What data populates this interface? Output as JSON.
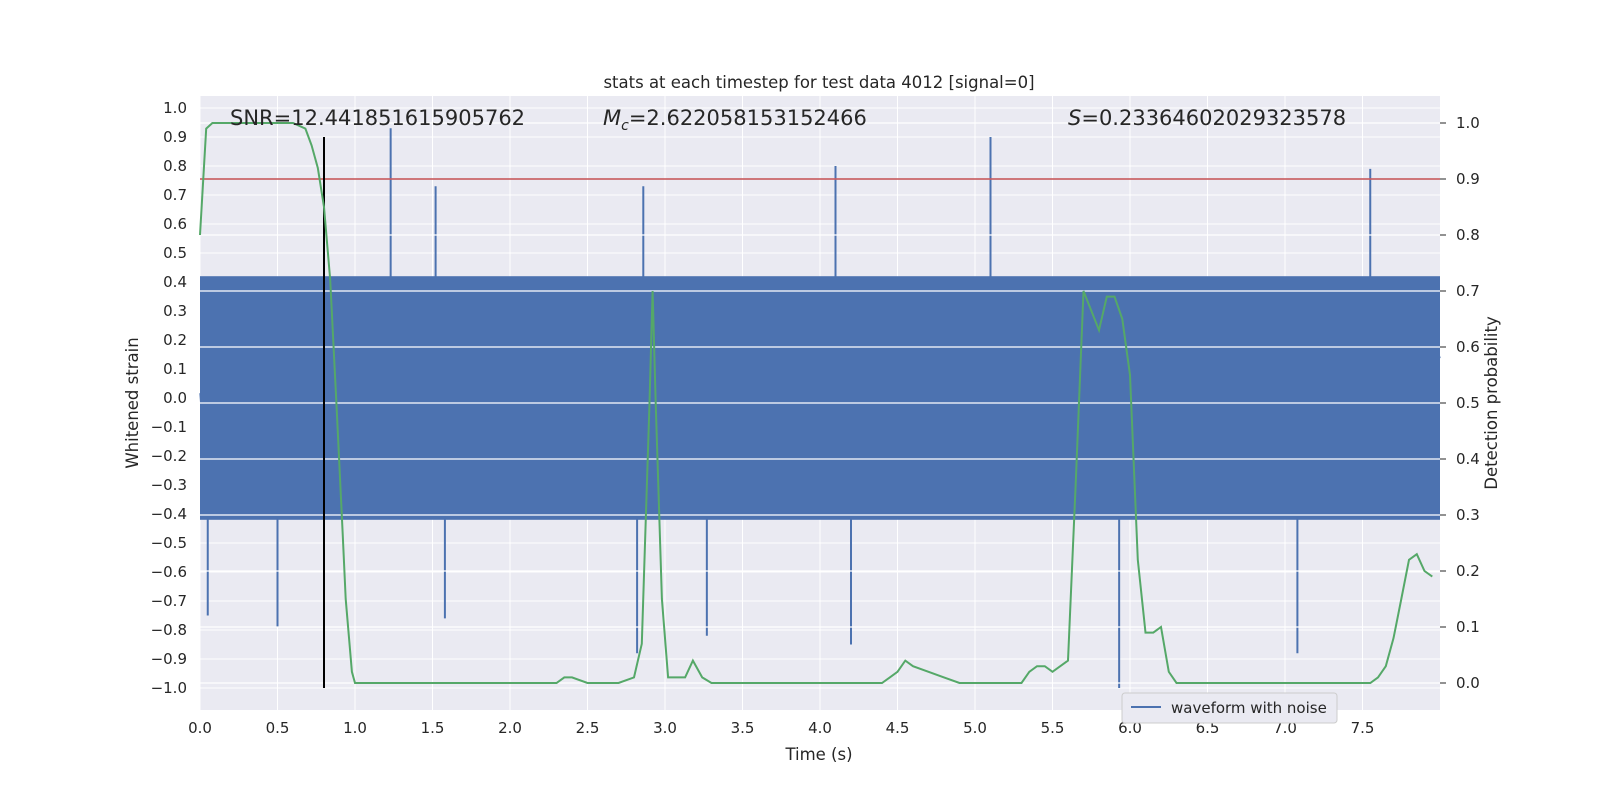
{
  "chart_data": {
    "type": "line",
    "title": "stats at each timestep for test data 4012 [signal=0]",
    "xlabel": "Time (s)",
    "ylabel_left": "Whitened strain",
    "ylabel_right": "Detection probability",
    "xlim": [
      0,
      8
    ],
    "ylim_left": [
      -1.0,
      1.0
    ],
    "ylim_right": [
      0.0,
      1.0
    ],
    "x_ticks": [
      "0.0",
      "0.5",
      "1.0",
      "1.5",
      "2.0",
      "2.5",
      "3.0",
      "3.5",
      "4.0",
      "4.5",
      "5.0",
      "5.5",
      "6.0",
      "6.5",
      "7.0",
      "7.5"
    ],
    "y_ticks_left": [
      "1.0",
      "0.9",
      "0.8",
      "0.7",
      "0.6",
      "0.5",
      "0.4",
      "0.3",
      "0.2",
      "0.1",
      "0.0",
      "−0.1",
      "−0.2",
      "−0.3",
      "−0.4",
      "−0.5",
      "−0.6",
      "−0.7",
      "−0.8",
      "−0.9",
      "−1.0"
    ],
    "y_ticks_right": [
      "1.0",
      "0.9",
      "0.8",
      "0.7",
      "0.6",
      "0.5",
      "0.4",
      "0.3",
      "0.2",
      "0.1",
      "0.0"
    ],
    "annotations": {
      "snr": "SNR=12.441851615905762",
      "mc_symbol": "M",
      "mc_subscript": "c",
      "mc_value": "=2.622058153152466",
      "s_symbol": "S",
      "s_value": "=0.23364602029323578"
    },
    "threshold": 0.9,
    "marker_time": 0.8,
    "grid": true,
    "legend": {
      "placement": "lower-right",
      "entries": [
        "waveform with noise"
      ]
    },
    "waveform": {
      "name": "waveform with noise",
      "description_envelope_max": [
        0.5,
        0.6,
        0.55,
        0.9,
        0.6,
        0.6,
        0.55,
        0.6
      ],
      "typical_band": [
        -0.42,
        0.42
      ],
      "spikes": [
        {
          "x": 0.85,
          "y": 0.37
        },
        {
          "x": 1.23,
          "y": 0.93
        },
        {
          "x": 1.52,
          "y": 0.73
        },
        {
          "x": 2.86,
          "y": 0.73
        },
        {
          "x": 4.1,
          "y": 0.8
        },
        {
          "x": 5.1,
          "y": 0.9
        },
        {
          "x": 7.55,
          "y": 0.79
        },
        {
          "x": 0.5,
          "y": -0.79
        },
        {
          "x": 2.82,
          "y": -0.88
        },
        {
          "x": 4.2,
          "y": -0.85
        },
        {
          "x": 5.93,
          "y": -1.0
        },
        {
          "x": 7.08,
          "y": -0.88
        },
        {
          "x": 0.05,
          "y": -0.75
        },
        {
          "x": 1.58,
          "y": -0.76
        },
        {
          "x": 3.27,
          "y": -0.82
        }
      ]
    },
    "detection_probability": {
      "x": [
        0.0,
        0.04,
        0.08,
        0.12,
        0.2,
        0.3,
        0.4,
        0.5,
        0.6,
        0.68,
        0.72,
        0.76,
        0.8,
        0.84,
        0.88,
        0.92,
        0.94,
        0.98,
        1.0,
        1.05,
        1.1,
        1.2,
        1.3,
        1.4,
        1.5,
        1.6,
        1.7,
        1.8,
        1.9,
        2.0,
        2.1,
        2.2,
        2.3,
        2.35,
        2.4,
        2.5,
        2.6,
        2.7,
        2.8,
        2.85,
        2.9,
        2.92,
        2.94,
        2.98,
        3.02,
        3.08,
        3.13,
        3.18,
        3.24,
        3.3,
        3.4,
        3.5,
        3.6,
        3.7,
        3.8,
        3.9,
        4.0,
        4.1,
        4.2,
        4.3,
        4.4,
        4.45,
        4.5,
        4.55,
        4.6,
        4.7,
        4.8,
        4.9,
        5.0,
        5.1,
        5.2,
        5.25,
        5.3,
        5.35,
        5.4,
        5.45,
        5.5,
        5.6,
        5.65,
        5.7,
        5.8,
        5.85,
        5.9,
        5.95,
        6.0,
        6.05,
        6.1,
        6.15,
        6.2,
        6.25,
        6.3,
        6.4,
        6.5,
        6.6,
        6.7,
        6.8,
        6.9,
        7.0,
        7.1,
        7.2,
        7.3,
        7.4,
        7.5,
        7.55,
        7.6,
        7.65,
        7.7,
        7.75,
        7.8,
        7.85,
        7.9,
        7.95
      ],
      "y": [
        0.8,
        0.99,
        1.0,
        1.0,
        1.0,
        1.0,
        1.0,
        1.0,
        1.0,
        0.99,
        0.96,
        0.92,
        0.85,
        0.72,
        0.5,
        0.27,
        0.15,
        0.02,
        0.0,
        0.0,
        0.0,
        0.0,
        0.0,
        0.0,
        0.0,
        0.0,
        0.0,
        0.0,
        0.0,
        0.0,
        0.0,
        0.0,
        0.0,
        0.01,
        0.01,
        0.0,
        0.0,
        0.0,
        0.01,
        0.07,
        0.5,
        0.7,
        0.5,
        0.15,
        0.01,
        0.01,
        0.01,
        0.04,
        0.01,
        0.0,
        0.0,
        0.0,
        0.0,
        0.0,
        0.0,
        0.0,
        0.0,
        0.0,
        0.0,
        0.0,
        0.0,
        0.01,
        0.02,
        0.04,
        0.03,
        0.02,
        0.01,
        0.0,
        0.0,
        0.0,
        0.0,
        0.0,
        0.0,
        0.02,
        0.03,
        0.03,
        0.02,
        0.04,
        0.36,
        0.7,
        0.63,
        0.69,
        0.69,
        0.65,
        0.55,
        0.22,
        0.09,
        0.09,
        0.1,
        0.02,
        0.0,
        0.0,
        0.0,
        0.0,
        0.0,
        0.0,
        0.0,
        0.0,
        0.0,
        0.0,
        0.0,
        0.0,
        0.0,
        0.0,
        0.01,
        0.03,
        0.08,
        0.15,
        0.22,
        0.23,
        0.2,
        0.19
      ]
    },
    "colors": {
      "background": "#eaeaf2",
      "grid": "#ffffff",
      "waveform": "#4c72b0",
      "probability": "#55a868",
      "threshold": "#c44e52",
      "marker": "#000000"
    }
  }
}
